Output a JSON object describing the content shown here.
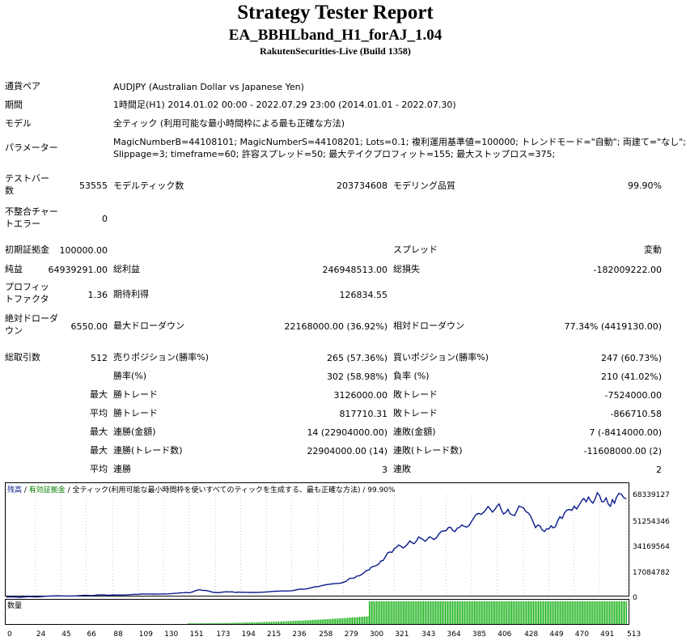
{
  "header": {
    "title": "Strategy Tester Report",
    "subtitle": "EA_BBHLband_H1_forAJ_1.04",
    "build": "RakutenSecurities-Live (Build 1358)"
  },
  "info": {
    "symbol_label": "通貨ペア",
    "symbol_value": "AUDJPY (Australian Dollar vs Japanese Yen)",
    "period_label": "期間",
    "period_value": "1時間足(H1) 2014.01.02 00:00 - 2022.07.29 23:00 (2014.01.01 - 2022.07.30)",
    "model_label": "モデル",
    "model_value": "全ティック (利用可能な最小時間枠による最も正確な方法)",
    "params_label": "パラメーター",
    "params_line1": "MagicNumberB=44108101; MagicNumberS=44108201; Lots=0.1; 複利運用基準値=100000; トレンドモード=\"自動\"; 両建て=\"なし\";",
    "params_line2": "Slippage=3; timeframe=60; 許容スプレッド=50; 最大テイクプロフィット=155; 最大ストップロス=375;"
  },
  "stats": {
    "bars_label": "テストバー数",
    "bars_value": "53555",
    "ticks_label": "モデルティック数",
    "ticks_value": "203734608",
    "quality_label": "モデリング品質",
    "quality_value": "99.90%",
    "mismatch_label": "不整合チャートエラー",
    "mismatch_value": "0",
    "deposit_label": "初期証拠金",
    "deposit_value": "100000.00",
    "spread_label": "スプレッド",
    "spread_value": "変動",
    "net_label": "純益",
    "net_value": "64939291.00",
    "gross_profit_label": "総利益",
    "gross_profit_value": "246948513.00",
    "gross_loss_label": "総損失",
    "gross_loss_value": "-182009222.00",
    "pf_label": "プロフィットファクタ",
    "pf_value": "1.36",
    "expected_label": "期待利得",
    "expected_value": "126834.55",
    "abs_dd_label": "絶対ドローダウン",
    "abs_dd_value": "6550.00",
    "max_dd_label": "最大ドローダウン",
    "max_dd_value": "22168000.00 (36.92%)",
    "rel_dd_label": "相対ドローダウン",
    "rel_dd_value": "77.34% (4419130.00)",
    "total_trades_label": "総取引数",
    "total_trades_value": "512",
    "short_label": "売りポジション(勝率%)",
    "short_value": "265 (57.36%)",
    "long_label": "買いポジション(勝率%)",
    "long_value": "247 (60.73%)",
    "win_rate_label": "勝率(%)",
    "win_rate_value": "302 (58.98%)",
    "loss_rate_label": "負率 (%)",
    "loss_rate_value": "210 (41.02%)",
    "max_prefix": "最大",
    "avg_prefix": "平均",
    "largest_win_label": "勝トレード",
    "largest_win_value": "3126000.00",
    "largest_loss_label": "敗トレード",
    "largest_loss_value": "-7524000.00",
    "avg_win_label": "勝トレード",
    "avg_win_value": "817710.31",
    "avg_loss_label": "敗トレード",
    "avg_loss_value": "-866710.58",
    "max_cons_wins_label": "連勝(金額)",
    "max_cons_wins_value": "14 (22904000.00)",
    "max_cons_losses_label": "連敗(金額)",
    "max_cons_losses_value": "7 (-8414000.00)",
    "max_cons_profit_label": "連勝(トレード数)",
    "max_cons_profit_value": "22904000.00 (14)",
    "max_cons_loss_label": "連敗(トレード数)",
    "max_cons_loss_value": "-11608000.00 (2)",
    "avg_cons_wins_label": "連勝",
    "avg_cons_wins_value": "3",
    "avg_cons_losses_label": "連敗",
    "avg_cons_losses_value": "2"
  },
  "chart_legend": {
    "balance": "残高",
    "sep1": " / ",
    "equity": "有効証拠金",
    "sep2": " / ",
    "desc": "全ティック(利用可能な最小時間枠を使いすべてのティックを生成する、最も正確な方法) / 99.90%",
    "volume": "数量"
  },
  "colors": {
    "balance_line": "#0a1a8c",
    "equity_text": "#008000",
    "volume_bar": "#1db31d",
    "axis": "#000000"
  },
  "chart_data": {
    "type": "line",
    "title": "",
    "ylim": [
      0,
      68339127
    ],
    "y_ticks": [
      "68339127",
      "51254346",
      "34169564",
      "17084782",
      "0"
    ],
    "x_ticks": [
      "0",
      "24",
      "45",
      "66",
      "88",
      "109",
      "130",
      "151",
      "173",
      "194",
      "215",
      "236",
      "258",
      "279",
      "300",
      "321",
      "343",
      "364",
      "385",
      "406",
      "428",
      "449",
      "470",
      "491",
      "513"
    ],
    "series": [
      {
        "x": [
          0,
          24,
          45,
          66,
          88,
          109,
          130,
          151,
          160,
          173,
          185,
          194,
          215,
          236,
          258,
          279,
          290,
          300,
          310,
          321,
          332,
          343,
          354,
          364,
          375,
          385,
          395,
          406,
          417,
          428,
          438,
          449,
          460,
          470,
          480,
          491,
          500,
          505,
          513
        ],
        "values": [
          100000,
          300000,
          900000,
          1300000,
          1600000,
          1900000,
          2300000,
          3000000,
          5000000,
          3200000,
          3500000,
          3300000,
          3500000,
          4300000,
          7000000,
          10000000,
          14000000,
          18000000,
          24000000,
          32000000,
          35000000,
          39000000,
          38000000,
          44000000,
          46000000,
          50000000,
          56000000,
          60000000,
          55000000,
          59000000,
          46000000,
          45000000,
          52000000,
          60000000,
          63000000,
          67000000,
          60000000,
          66000000,
          64939291
        ]
      }
    ],
    "volume": {
      "label": "数量",
      "x_start": 300,
      "x_end": 513,
      "level": 0.97
    }
  }
}
